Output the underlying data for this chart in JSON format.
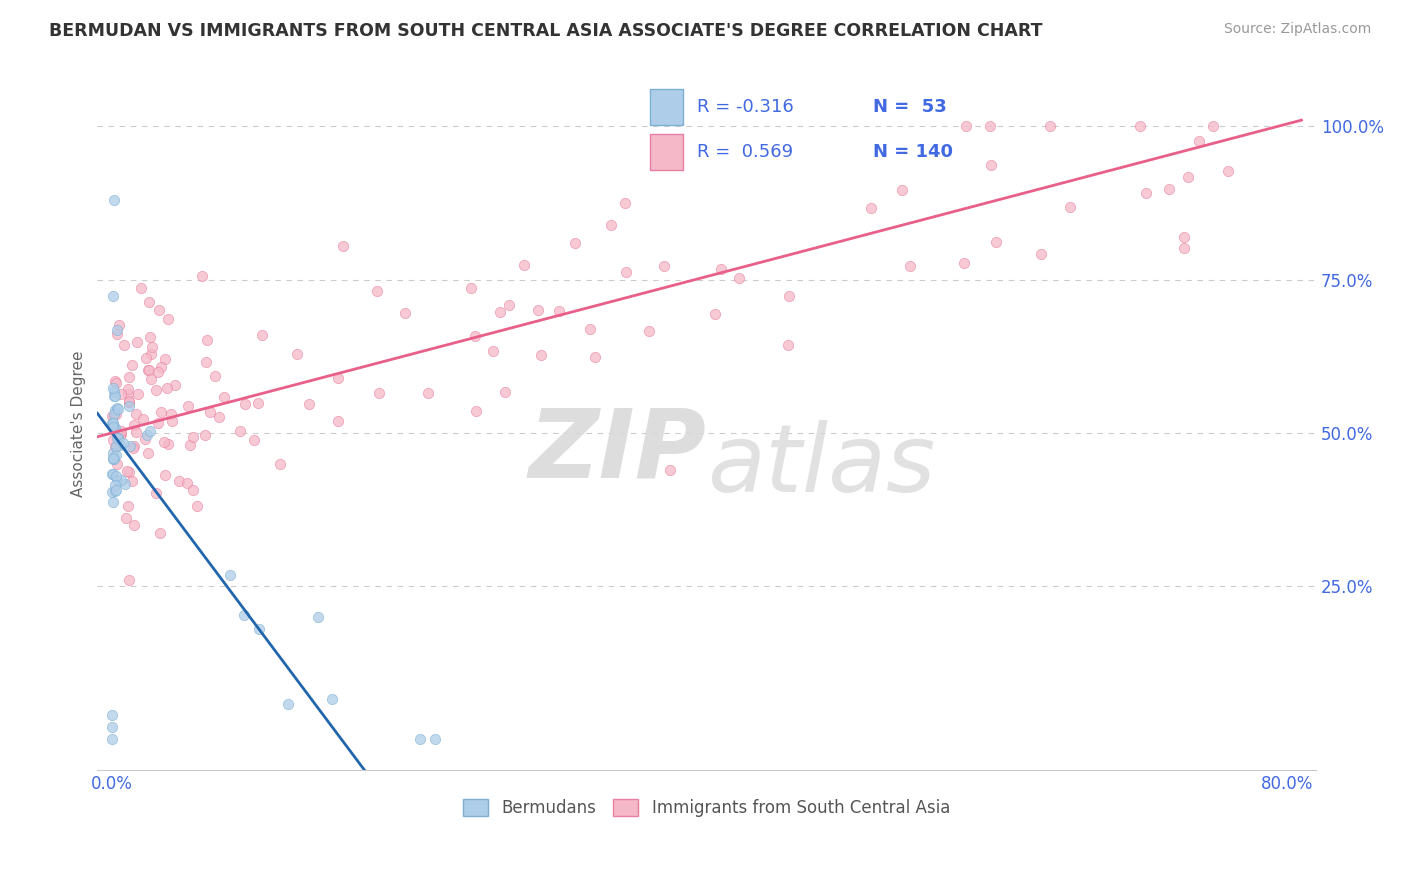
{
  "title": "BERMUDAN VS IMMIGRANTS FROM SOUTH CENTRAL ASIA ASSOCIATE'S DEGREE CORRELATION CHART",
  "source": "Source: ZipAtlas.com",
  "ylabel": "Associate's Degree",
  "xlim": [
    -0.01,
    0.82
  ],
  "ylim": [
    -0.05,
    1.08
  ],
  "xticks": [
    0.0,
    0.8
  ],
  "xtick_labels": [
    "0.0%",
    "80.0%"
  ],
  "yticks": [
    0.0,
    0.25,
    0.5,
    0.75,
    1.0
  ],
  "ytick_labels": [
    "",
    "25.0%",
    "50.0%",
    "75.0%",
    "100.0%"
  ],
  "legend_r1": "R = -0.316",
  "legend_n1": "N =  53",
  "legend_r2": "R =  0.569",
  "legend_n2": "N = 140",
  "color_blue_face": "#aecde8",
  "color_blue_edge": "#7bafd4",
  "color_pink_face": "#f5b8c8",
  "color_pink_edge": "#e87fa0",
  "color_blue_line": "#2166ac",
  "color_pink_line": "#e8608a",
  "color_axis_text": "#4169e1",
  "color_title": "#333333",
  "color_source": "#999999",
  "color_ylabel": "#666666",
  "color_grid": "#cccccc",
  "color_watermark": "#e0e0e0",
  "watermark_zip": "ZIP",
  "watermark_atlas": "atlas",
  "blue_line_x0": 0.0,
  "blue_line_y0": 0.5,
  "blue_line_slope": -3.2,
  "pink_line_x0": 0.0,
  "pink_line_y0": 0.5,
  "pink_line_slope": 0.63,
  "scatter_size": 55,
  "scatter_alpha": 0.75,
  "title_fontsize": 12.5,
  "source_fontsize": 10,
  "tick_fontsize": 12,
  "ylabel_fontsize": 11
}
